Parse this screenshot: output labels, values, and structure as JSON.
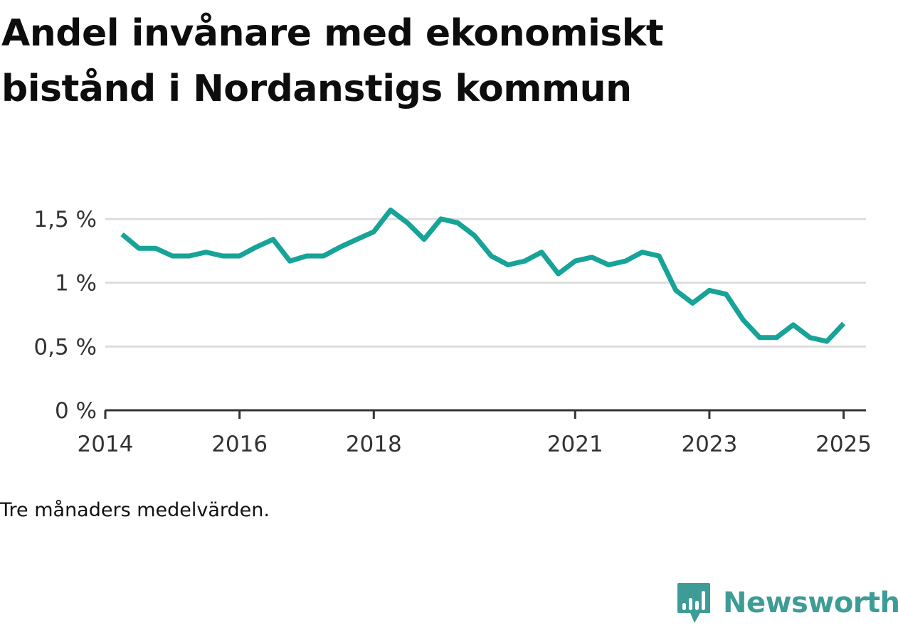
{
  "title": "Andel invånare med ekonomiskt bistånd i Nordanstigs kommun",
  "note": "Tre månaders medelvärden.",
  "brand": {
    "name": "Newsworthy",
    "icon": "newsworthy-logo-icon",
    "color": "#3e9c96"
  },
  "chart_data": {
    "type": "line",
    "title": "Andel invånare med ekonomiskt bistånd i Nordanstigs kommun",
    "xlabel": "",
    "ylabel": "",
    "ylim": [
      0,
      1.6
    ],
    "xlim": [
      "2014-01",
      "2025-05"
    ],
    "yticks": [
      {
        "value": 0,
        "label": "0 %"
      },
      {
        "value": 0.5,
        "label": "0,5 %"
      },
      {
        "value": 1,
        "label": "1 %"
      },
      {
        "value": 1.5,
        "label": "1,5 %"
      }
    ],
    "xticks": [
      {
        "value": "2014-01",
        "label": "2014"
      },
      {
        "value": "2016-01",
        "label": "2016"
      },
      {
        "value": "2018-01",
        "label": "2018"
      },
      {
        "value": "2021-01",
        "label": "2021"
      },
      {
        "value": "2023-01",
        "label": "2023"
      },
      {
        "value": "2025-01",
        "label": "2025"
      }
    ],
    "grid": true,
    "line_color": "#17a398",
    "series": [
      {
        "x": [
          "2014-04",
          "2014-07",
          "2014-10",
          "2015-01",
          "2015-04",
          "2015-07",
          "2015-10",
          "2016-01",
          "2016-04",
          "2016-07",
          "2016-10",
          "2017-01",
          "2017-04",
          "2017-07",
          "2017-10",
          "2018-01",
          "2018-04",
          "2018-07",
          "2018-10",
          "2019-01",
          "2019-04",
          "2019-07",
          "2019-10",
          "2020-01",
          "2020-04",
          "2020-07",
          "2020-10",
          "2021-01",
          "2021-04",
          "2021-07",
          "2021-10",
          "2022-01",
          "2022-04",
          "2022-07",
          "2022-10",
          "2023-01",
          "2023-04",
          "2023-07",
          "2023-10",
          "2024-01",
          "2024-04",
          "2024-07",
          "2024-10",
          "2025-01"
        ],
        "values": [
          1.38,
          1.27,
          1.27,
          1.21,
          1.21,
          1.24,
          1.21,
          1.21,
          1.28,
          1.34,
          1.17,
          1.21,
          1.21,
          1.28,
          1.34,
          1.4,
          1.57,
          1.47,
          1.34,
          1.5,
          1.47,
          1.37,
          1.21,
          1.14,
          1.17,
          1.24,
          1.07,
          1.17,
          1.2,
          1.14,
          1.17,
          1.24,
          1.21,
          0.94,
          0.84,
          0.94,
          0.91,
          0.71,
          0.57,
          0.57,
          0.67,
          0.57,
          0.54,
          0.68
        ]
      }
    ]
  }
}
